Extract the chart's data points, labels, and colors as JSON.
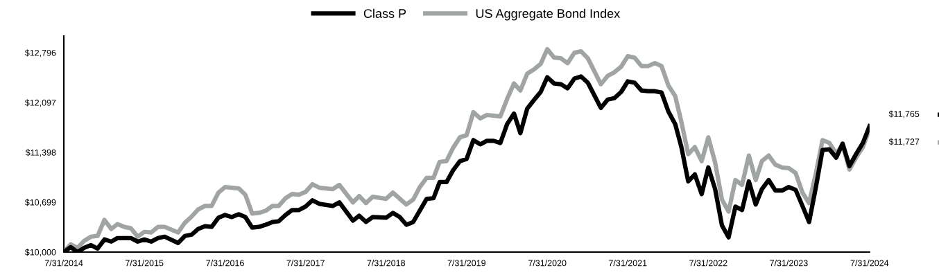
{
  "chart_data": {
    "type": "line",
    "legend": "top",
    "grid": false,
    "line_style": "solid",
    "marker": "none",
    "ylim": [
      10000,
      13030
    ],
    "yticks": [
      {
        "value": 10000,
        "label": "$10,000"
      },
      {
        "value": 10699,
        "label": "$10,699"
      },
      {
        "value": 11398,
        "label": "$11,398"
      },
      {
        "value": 12097,
        "label": "$12,097"
      },
      {
        "value": 12796,
        "label": "$12,796"
      }
    ],
    "xlim": [
      "2014-07",
      "2024-07"
    ],
    "xticks": [
      {
        "value": "2014-07",
        "label": "7/31/2014"
      },
      {
        "value": "2015-07",
        "label": "7/31/2015"
      },
      {
        "value": "2016-07",
        "label": "7/31/2016"
      },
      {
        "value": "2017-07",
        "label": "7/31/2017"
      },
      {
        "value": "2018-07",
        "label": "7/31/2018"
      },
      {
        "value": "2019-07",
        "label": "7/31/2019"
      },
      {
        "value": "2020-07",
        "label": "7/31/2020"
      },
      {
        "value": "2021-07",
        "label": "7/31/2021"
      },
      {
        "value": "2022-07",
        "label": "7/31/2022"
      },
      {
        "value": "2023-07",
        "label": "7/31/2023"
      },
      {
        "value": "2024-07",
        "label": "7/31/2024"
      }
    ],
    "series": [
      {
        "name": "Class P",
        "color": "#000000",
        "x": [
          "2014-07",
          "2014-08",
          "2014-09",
          "2014-10",
          "2014-11",
          "2014-12",
          "2015-01",
          "2015-02",
          "2015-03",
          "2015-05",
          "2015-06",
          "2015-07",
          "2015-08",
          "2015-09",
          "2015-10",
          "2015-12",
          "2016-01",
          "2016-02",
          "2016-03",
          "2016-04",
          "2016-05",
          "2016-06",
          "2016-07",
          "2016-08",
          "2016-09",
          "2016-10",
          "2016-11",
          "2016-12",
          "2017-01",
          "2017-02",
          "2017-03",
          "2017-04",
          "2017-05",
          "2017-06",
          "2017-07",
          "2017-08",
          "2017-09",
          "2017-11",
          "2017-12",
          "2018-02",
          "2018-03",
          "2018-04",
          "2018-05",
          "2018-07",
          "2018-08",
          "2018-09",
          "2018-10",
          "2018-11",
          "2019-01",
          "2019-02",
          "2019-03",
          "2019-04",
          "2019-05",
          "2019-06",
          "2019-07",
          "2019-08",
          "2019-09",
          "2019-10",
          "2019-11",
          "2019-12",
          "2020-01",
          "2020-02",
          "2020-03",
          "2020-04",
          "2020-05",
          "2020-06",
          "2020-07",
          "2020-08",
          "2020-09",
          "2020-10",
          "2020-11",
          "2020-12",
          "2021-01",
          "2021-03",
          "2021-04",
          "2021-05",
          "2021-06",
          "2021-07",
          "2021-08",
          "2021-09",
          "2021-10",
          "2021-11",
          "2021-12",
          "2022-01",
          "2022-02",
          "2022-03",
          "2022-04",
          "2022-05",
          "2022-06",
          "2022-07",
          "2022-08",
          "2022-09",
          "2022-10",
          "2022-11",
          "2022-12",
          "2023-01",
          "2023-02",
          "2023-03",
          "2023-04",
          "2023-05",
          "2023-06",
          "2023-07",
          "2023-08",
          "2023-09",
          "2023-10",
          "2023-11",
          "2023-12",
          "2024-01",
          "2024-02",
          "2024-03",
          "2024-04",
          "2024-05",
          "2024-06",
          "2024-07"
        ],
        "values": [
          10000,
          10069,
          10000,
          10059,
          10098,
          10049,
          10177,
          10147,
          10196,
          10196,
          10147,
          10177,
          10147,
          10196,
          10216,
          10128,
          10226,
          10245,
          10324,
          10363,
          10353,
          10481,
          10520,
          10491,
          10530,
          10491,
          10343,
          10353,
          10383,
          10422,
          10432,
          10520,
          10589,
          10589,
          10638,
          10726,
          10677,
          10647,
          10697,
          10441,
          10510,
          10422,
          10491,
          10481,
          10549,
          10491,
          10383,
          10422,
          10746,
          10755,
          10981,
          10981,
          11148,
          11275,
          11305,
          11570,
          11511,
          11560,
          11560,
          11530,
          11795,
          11942,
          11668,
          12011,
          12129,
          12246,
          12452,
          12364,
          12354,
          12296,
          12433,
          12462,
          12374,
          12021,
          12139,
          12158,
          12246,
          12394,
          12374,
          12266,
          12256,
          12256,
          12237,
          11972,
          11795,
          11472,
          10991,
          11089,
          10814,
          11187,
          10883,
          10373,
          10206,
          10638,
          10589,
          10991,
          10667,
          10883,
          11010,
          10863,
          10863,
          10912,
          10873,
          10647,
          10422,
          10912,
          11432,
          11442,
          11324,
          11521,
          11207,
          11373,
          11530,
          11765
        ]
      },
      {
        "name": "US Aggregate Bond Index",
        "color": "#a0a4a3",
        "x": [
          "2014-07",
          "2014-08",
          "2014-09",
          "2014-10",
          "2014-11",
          "2014-12",
          "2015-01",
          "2015-02",
          "2015-03",
          "2015-04",
          "2015-05",
          "2015-06",
          "2015-07",
          "2015-08",
          "2015-09",
          "2015-10",
          "2015-12",
          "2016-01",
          "2016-02",
          "2016-03",
          "2016-04",
          "2016-05",
          "2016-06",
          "2016-07",
          "2016-09",
          "2016-10",
          "2016-11",
          "2016-12",
          "2017-01",
          "2017-02",
          "2017-03",
          "2017-04",
          "2017-05",
          "2017-06",
          "2017-07",
          "2017-08",
          "2017-09",
          "2017-11",
          "2017-12",
          "2018-02",
          "2018-03",
          "2018-04",
          "2018-05",
          "2018-07",
          "2018-08",
          "2018-10",
          "2018-11",
          "2018-12",
          "2019-01",
          "2019-02",
          "2019-03",
          "2019-04",
          "2019-05",
          "2019-06",
          "2019-07",
          "2019-08",
          "2019-09",
          "2019-10",
          "2019-12",
          "2020-01",
          "2020-02",
          "2020-03",
          "2020-04",
          "2020-05",
          "2020-06",
          "2020-07",
          "2020-08",
          "2020-09",
          "2020-10",
          "2020-11",
          "2020-12",
          "2021-01",
          "2021-03",
          "2021-04",
          "2021-05",
          "2021-06",
          "2021-07",
          "2021-08",
          "2021-09",
          "2021-10",
          "2021-11",
          "2021-12",
          "2022-01",
          "2022-02",
          "2022-03",
          "2022-04",
          "2022-05",
          "2022-06",
          "2022-07",
          "2022-08",
          "2022-09",
          "2022-10",
          "2022-11",
          "2022-12",
          "2023-01",
          "2023-02",
          "2023-03",
          "2023-04",
          "2023-05",
          "2023-06",
          "2023-07",
          "2023-08",
          "2023-09",
          "2023-10",
          "2023-11",
          "2023-12",
          "2024-01",
          "2024-02",
          "2024-03",
          "2024-04",
          "2024-05",
          "2024-06",
          "2024-07"
        ],
        "values": [
          10000,
          10108,
          10059,
          10157,
          10216,
          10226,
          10451,
          10324,
          10392,
          10353,
          10334,
          10216,
          10284,
          10275,
          10353,
          10353,
          10275,
          10412,
          10500,
          10598,
          10647,
          10647,
          10834,
          10912,
          10893,
          10804,
          10540,
          10549,
          10579,
          10647,
          10647,
          10755,
          10814,
          10804,
          10844,
          10952,
          10903,
          10883,
          10942,
          10697,
          10785,
          10687,
          10775,
          10746,
          10834,
          10667,
          10736,
          10912,
          11040,
          11040,
          11265,
          11275,
          11462,
          11609,
          11638,
          11962,
          11874,
          11923,
          11903,
          12148,
          12364,
          12266,
          12502,
          12560,
          12639,
          12845,
          12727,
          12717,
          12649,
          12796,
          12815,
          12717,
          12354,
          12472,
          12521,
          12600,
          12747,
          12727,
          12609,
          12609,
          12649,
          12609,
          12335,
          12188,
          11825,
          11373,
          11472,
          11275,
          11609,
          11256,
          10736,
          10569,
          11010,
          10942,
          11354,
          11010,
          11275,
          11354,
          11226,
          11187,
          11177,
          11108,
          10834,
          10687,
          11108,
          11570,
          11530,
          11383,
          11501,
          11158,
          11324,
          11472,
          11727
        ]
      }
    ],
    "annotations": [
      {
        "text": "$11,765",
        "x": "2024-07",
        "y": 11765
      },
      {
        "text": "$11,727",
        "x": "2024-07",
        "y": 11727
      }
    ]
  }
}
